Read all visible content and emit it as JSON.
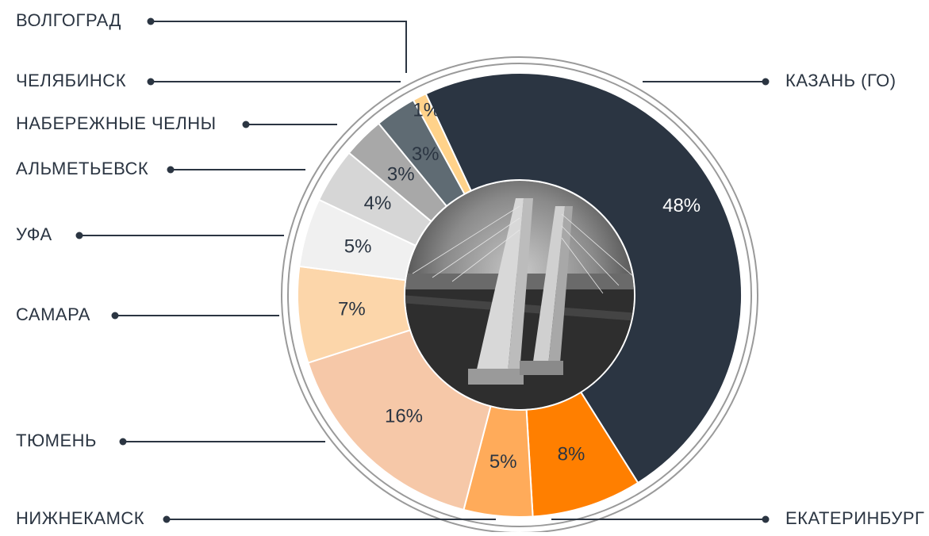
{
  "chart_data": {
    "type": "donut",
    "categories": [
      "КАЗАНЬ (ГО)",
      "ЕКАТЕРИНБУРГ",
      "НИЖНЕКАМСК",
      "ТЮМЕНЬ",
      "САМАРА",
      "УФА",
      "АЛЬМЕТЬЕВСК",
      "НАБЕРЕЖНЫЕ ЧЕЛНЫ",
      "ЧЕЛЯБИНСК",
      "ВОЛГОГРАД"
    ],
    "values": [
      48,
      8,
      5,
      16,
      7,
      5,
      4,
      3,
      3,
      1
    ],
    "value_labels": [
      "48%",
      "8%",
      "5%",
      "16%",
      "7%",
      "5%",
      "4%",
      "3%",
      "3%",
      "1%"
    ],
    "colors": [
      "#2b3542",
      "#ff7f00",
      "#ffab5a",
      "#f6c8a8",
      "#fcd6aa",
      "#f0f0f0",
      "#d6d6d6",
      "#a8a8a8",
      "#5f6b73",
      "#ffd28a"
    ]
  }
}
